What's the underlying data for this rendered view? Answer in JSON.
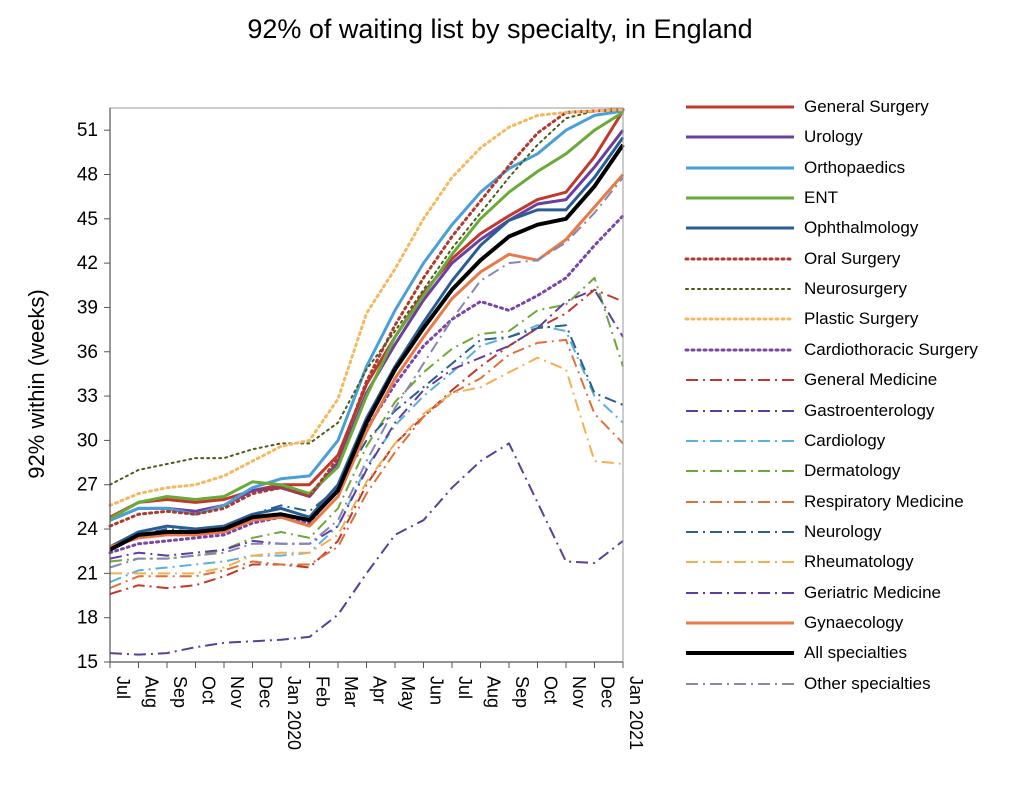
{
  "chart_data": {
    "type": "line",
    "title": "92% of waiting list by specialty, in England",
    "ylabel": "92% within (weeks)",
    "xlabel": "",
    "ylim": [
      15,
      52.5
    ],
    "yticks": [
      15,
      18,
      21,
      24,
      27,
      30,
      33,
      36,
      39,
      42,
      45,
      48,
      51
    ],
    "categories": [
      "Jul",
      "Aug",
      "Sep",
      "Oct",
      "Nov",
      "Dec",
      "Jan",
      "Feb",
      "Mar",
      "Apr",
      "May",
      "Jun",
      "Jul",
      "Aug",
      "Sep",
      "Oct",
      "Nov",
      "Dec",
      "Jan"
    ],
    "tick_labels": [
      "Jul",
      "Aug",
      "Sep",
      "Oct",
      "Nov",
      "Dec",
      "Jan 2020",
      "Feb",
      "Mar",
      "Apr",
      "May",
      "Jun",
      "Jul",
      "Aug",
      "Sep",
      "Oct",
      "Nov",
      "Dec",
      "Jan 2021"
    ],
    "grid": false,
    "legend_position": "right",
    "series": [
      {
        "name": "General Surgery",
        "color": "#C0392B",
        "dash": "solid",
        "width": 3,
        "values": [
          24.8,
          25.8,
          26.0,
          25.8,
          26.0,
          26.6,
          27.0,
          27.0,
          29.0,
          33.8,
          37.0,
          40.0,
          42.3,
          44.0,
          45.2,
          46.3,
          46.8,
          49.2,
          52.3
        ]
      },
      {
        "name": "Urology",
        "color": "#6A3FA0",
        "dash": "solid",
        "width": 3,
        "values": [
          24.6,
          25.4,
          25.4,
          25.2,
          25.6,
          26.6,
          26.8,
          26.2,
          28.5,
          33.2,
          36.5,
          39.5,
          42.0,
          43.6,
          44.9,
          46.0,
          46.3,
          48.5,
          51.0
        ]
      },
      {
        "name": "Orthopaedics",
        "color": "#4A9FD8",
        "dash": "solid",
        "width": 3,
        "values": [
          24.6,
          25.4,
          25.4,
          25.0,
          25.6,
          26.8,
          27.4,
          27.6,
          30.0,
          35.0,
          38.8,
          42.0,
          44.6,
          46.8,
          48.4,
          49.4,
          51.0,
          52.0,
          52.3
        ]
      },
      {
        "name": "ENT",
        "color": "#6AAA3A",
        "dash": "solid",
        "width": 3,
        "values": [
          24.7,
          25.8,
          26.2,
          26.0,
          26.2,
          27.2,
          27.0,
          26.4,
          28.2,
          33.0,
          37.0,
          39.8,
          42.6,
          45.0,
          46.8,
          48.2,
          49.4,
          51.0,
          52.2
        ]
      },
      {
        "name": "Ophthalmology",
        "color": "#2A5D96",
        "dash": "solid",
        "width": 3,
        "values": [
          22.8,
          23.8,
          24.2,
          24.0,
          24.2,
          25.0,
          25.4,
          24.8,
          27.0,
          31.5,
          35.0,
          38.0,
          40.8,
          43.2,
          44.9,
          45.6,
          45.6,
          47.8,
          50.5
        ]
      },
      {
        "name": "Oral Surgery",
        "color": "#B03A2E",
        "dash": "dot",
        "width": 3,
        "values": [
          24.2,
          25.0,
          25.2,
          25.0,
          25.4,
          26.4,
          26.8,
          26.2,
          28.8,
          34.0,
          37.8,
          41.0,
          43.8,
          46.2,
          48.6,
          50.8,
          52.2,
          52.3,
          52.4
        ]
      },
      {
        "name": "Neurosurgery",
        "color": "#4B5D1E",
        "dash": "dot",
        "width": 2,
        "values": [
          27.0,
          28.0,
          28.4,
          28.8,
          28.8,
          29.4,
          29.8,
          29.8,
          31.2,
          34.8,
          37.4,
          40.2,
          43.0,
          45.4,
          47.8,
          50.0,
          51.8,
          52.3,
          52.4
        ]
      },
      {
        "name": "Plastic Surgery",
        "color": "#F4B860",
        "dash": "dot",
        "width": 3,
        "values": [
          25.6,
          26.4,
          26.8,
          27.0,
          27.6,
          28.6,
          29.6,
          30.0,
          32.8,
          38.6,
          41.6,
          45.0,
          47.8,
          49.8,
          51.2,
          52.0,
          52.2,
          52.3,
          52.4
        ]
      },
      {
        "name": "Cardiothoracic Surgery",
        "color": "#7A45A8",
        "dash": "dot",
        "width": 3,
        "values": [
          22.4,
          23.0,
          23.2,
          23.4,
          23.6,
          24.4,
          24.8,
          24.4,
          26.8,
          30.8,
          33.8,
          36.4,
          38.2,
          39.4,
          38.8,
          39.8,
          41.0,
          43.2,
          45.2
        ]
      },
      {
        "name": "General Medicine",
        "color": "#C0392B",
        "dash": "dashdot",
        "width": 2,
        "values": [
          19.6,
          20.2,
          20.0,
          20.2,
          20.8,
          21.6,
          21.6,
          21.4,
          23.2,
          27.0,
          29.8,
          31.6,
          33.4,
          35.0,
          36.4,
          37.6,
          38.6,
          40.2,
          39.4
        ]
      },
      {
        "name": "Gastroenterology",
        "color": "#5A3F9A",
        "dash": "dashdot",
        "width": 2,
        "values": [
          15.6,
          15.5,
          15.6,
          16.0,
          16.3,
          16.4,
          16.5,
          16.7,
          18.2,
          21.0,
          23.6,
          24.6,
          26.8,
          28.6,
          29.8,
          25.8,
          21.8,
          21.7,
          23.2
        ]
      },
      {
        "name": "Cardiology",
        "color": "#5BB0D8",
        "dash": "dashdot",
        "width": 2,
        "values": [
          20.4,
          21.2,
          21.4,
          21.6,
          21.8,
          22.2,
          22.2,
          22.4,
          24.2,
          28.2,
          31.0,
          33.0,
          34.6,
          36.4,
          37.0,
          37.8,
          37.4,
          33.0,
          31.2
        ]
      },
      {
        "name": "Dermatology",
        "color": "#6FA83A",
        "dash": "dashdot",
        "width": 2,
        "values": [
          21.8,
          22.0,
          22.0,
          22.2,
          22.6,
          23.4,
          23.8,
          23.4,
          25.4,
          29.6,
          32.6,
          34.6,
          36.2,
          37.2,
          37.4,
          38.8,
          39.2,
          41.0,
          35.0
        ]
      },
      {
        "name": "Respiratory Medicine",
        "color": "#E0703A",
        "dash": "dashdot",
        "width": 2,
        "values": [
          20.0,
          20.8,
          20.8,
          20.8,
          21.2,
          21.8,
          21.6,
          21.6,
          22.8,
          26.4,
          29.2,
          31.6,
          33.2,
          34.2,
          35.8,
          36.6,
          36.8,
          31.8,
          29.8
        ]
      },
      {
        "name": "Neurology",
        "color": "#2C5E8E",
        "dash": "dashdot",
        "width": 2,
        "values": [
          22.8,
          23.6,
          24.0,
          23.8,
          24.2,
          25.0,
          25.6,
          25.2,
          26.8,
          30.0,
          32.0,
          33.6,
          35.2,
          36.8,
          37.0,
          37.6,
          37.8,
          33.2,
          32.4
        ]
      },
      {
        "name": "Rheumatology",
        "color": "#F4B050",
        "dash": "dashdot",
        "width": 2,
        "values": [
          21.0,
          21.0,
          21.0,
          21.0,
          21.4,
          22.2,
          22.4,
          22.4,
          23.6,
          27.2,
          29.8,
          31.8,
          33.2,
          33.6,
          34.6,
          35.6,
          34.8,
          28.6,
          28.4
        ]
      },
      {
        "name": "Geriatric Medicine",
        "color": "#5E3FA0",
        "dash": "dashdot",
        "width": 2,
        "values": [
          22.0,
          22.4,
          22.2,
          22.4,
          22.6,
          23.2,
          23.0,
          23.0,
          24.2,
          28.0,
          31.2,
          33.4,
          34.8,
          35.6,
          36.4,
          37.6,
          39.4,
          40.2,
          37.0
        ]
      },
      {
        "name": "Gynaecology",
        "color": "#E87A48",
        "dash": "solid",
        "width": 3,
        "values": [
          22.8,
          23.4,
          23.6,
          23.6,
          23.8,
          24.6,
          24.8,
          24.2,
          26.2,
          30.6,
          34.2,
          37.0,
          39.6,
          41.4,
          42.6,
          42.2,
          43.6,
          45.8,
          48.0
        ]
      },
      {
        "name": "All specialties",
        "color": "#000000",
        "dash": "solid",
        "width": 4,
        "values": [
          22.6,
          23.6,
          23.8,
          23.8,
          24.0,
          24.8,
          25.0,
          24.6,
          26.6,
          31.2,
          34.8,
          37.6,
          40.2,
          42.2,
          43.8,
          44.6,
          45.0,
          47.2,
          50.0
        ]
      },
      {
        "name": "Other specialties",
        "color": "#8A86B0",
        "dash": "dashdot",
        "width": 2,
        "values": [
          21.4,
          22.0,
          22.0,
          22.2,
          22.4,
          23.0,
          23.0,
          23.0,
          24.6,
          28.6,
          32.2,
          35.2,
          38.2,
          40.8,
          42.0,
          42.2,
          43.4,
          45.4,
          47.8
        ]
      }
    ]
  }
}
